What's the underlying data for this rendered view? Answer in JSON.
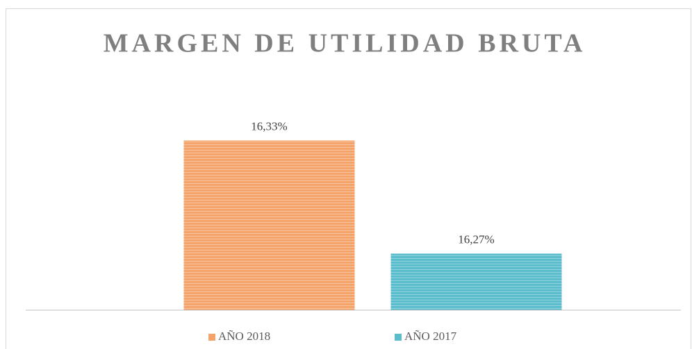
{
  "chart_data": {
    "type": "bar",
    "title": "MARGEN DE UTILIDAD  BRUTA",
    "categories": [
      null
    ],
    "series": [
      {
        "name": "AÑO 2018",
        "color": "#f4a46b",
        "values": [
          16.33
        ],
        "value_labels": [
          "16,33%"
        ]
      },
      {
        "name": "AÑO 2017",
        "color": "#5bbdcc",
        "values": [
          16.27
        ],
        "value_labels": [
          "16,27%"
        ]
      }
    ],
    "ylim": [
      16.24,
      16.36
    ],
    "legend": "bottom"
  }
}
